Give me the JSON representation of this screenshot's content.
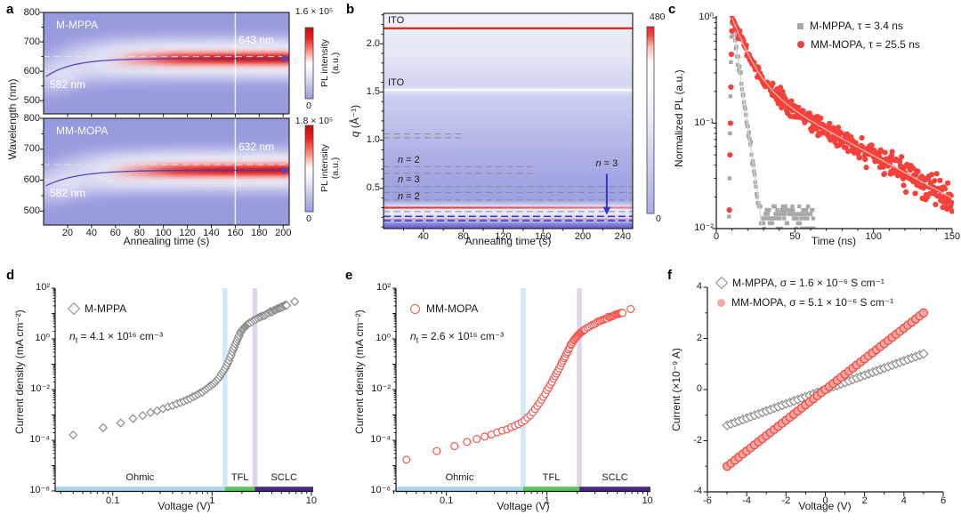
{
  "panel_letters": {
    "a": "a",
    "b": "b",
    "c": "c",
    "d": "d",
    "e": "e",
    "f": "f"
  },
  "chart_data": [
    {
      "id": "a",
      "type": "heatmap",
      "xlabel": "Annealing time (s)",
      "ylabel": "Wavelength (nm)",
      "x_range": [
        0,
        205
      ],
      "x_ticks": [
        20,
        40,
        60,
        80,
        100,
        120,
        140,
        160,
        180,
        200
      ],
      "y_range": [
        455,
        800
      ],
      "y_ticks": [
        800,
        700,
        600,
        500
      ],
      "guide_lines_nm": [
        650,
        600
      ],
      "time_marker_s": 160,
      "palette": {
        "bg": "#989ade",
        "hot": "#e8231e"
      },
      "colorbar": {
        "label_line1": "PL intensity",
        "label_line2": "(a.u.)",
        "min": "0"
      },
      "subpanels": [
        {
          "name": "M-MPPA",
          "start_label": "582 nm",
          "final_label": "643 nm",
          "start_nm": 582,
          "final_nm": 643,
          "rise_tau_s": 22,
          "colorbar_max": "1.6 × 10⁵"
        },
        {
          "name": "MM-MOPA",
          "start_label": "582 nm",
          "final_label": "632 nm",
          "start_nm": 582,
          "final_nm": 632,
          "rise_tau_s": 26,
          "colorbar_max": "1.8 × 10⁵"
        }
      ]
    },
    {
      "id": "b",
      "type": "heatmap",
      "xlabel": "Annealing time (s)",
      "ylabel_sym": "q",
      "ylabel_rest": " (Å⁻¹)",
      "x_range": [
        0,
        250
      ],
      "x_ticks": [
        40,
        80,
        120,
        160,
        200,
        240
      ],
      "x_minor": 20,
      "y_range": [
        0.083,
        2.315
      ],
      "y_ticks": [
        "2.0",
        "1.5",
        "1.0",
        "0.5"
      ],
      "y_tick_vals": [
        2.0,
        1.5,
        1.0,
        0.5
      ],
      "y_minor": 0.1,
      "palette": {
        "bg_top": "#f0f1fb",
        "bg_bottom": "#9a9de0",
        "dark_band": "#6165c9",
        "hot": "#e8231e",
        "blue_line": "#3232d4"
      },
      "colorbar": {
        "max": "480",
        "min": "0"
      },
      "ito_lines": [
        {
          "label": "ITO",
          "q": 2.16,
          "style": "red"
        },
        {
          "label": "ITO",
          "q": 1.52,
          "style": "white"
        }
      ],
      "red_lines": [
        0.3,
        0.18
      ],
      "gray_dashed": [
        {
          "qs": [
            1.065,
            1.025
          ],
          "t_end": 80
        },
        {
          "qs": [
            0.725,
            0.657
          ],
          "t_end": 150
        },
        {
          "qs": [
            0.519,
            0.457
          ],
          "t_end": 250
        },
        {
          "qs": [
            0.38
          ],
          "t_end": 250
        },
        {
          "qs": [
            0.26
          ],
          "t_end": 250
        }
      ],
      "blue_dashed": [
        0.21,
        0.165
      ],
      "peak_labels": [
        {
          "sym": "n",
          "rest": " = 2",
          "q": 0.79
        },
        {
          "sym": "n",
          "rest": " = 3",
          "q": 0.585
        },
        {
          "sym": "n",
          "rest": " = 2",
          "q": 0.415
        }
      ],
      "arrow_label": {
        "sym": "n",
        "rest": " = 3",
        "t": 224,
        "q_from": 0.65,
        "q_to": 0.225
      }
    },
    {
      "id": "c",
      "type": "scatter",
      "xlabel": "Time (ns)",
      "ylabel": "Normalized PL (a.u.)",
      "x_range": [
        0,
        150
      ],
      "x_ticks": [
        0,
        50,
        100,
        150
      ],
      "x_minor": 10,
      "y_ticks": [
        "10⁰",
        "10⁻¹",
        "10⁻²"
      ],
      "y_exps": [
        0,
        -1,
        -2
      ],
      "series": [
        {
          "name": "M-MPPA, τ = 3.4 ns",
          "marker": "square",
          "color": "#a8a8a8",
          "fit_color": "#d4d4d4",
          "t0": 10,
          "t_end": 62,
          "dt": 0.4,
          "components": [
            [
              1.0,
              4.2
            ]
          ],
          "floor": 0.0125,
          "quantize": 0.00125,
          "sigma": 0.07,
          "sigma_grow": 0,
          "rise": [
            [
              8.1,
              0.013
            ],
            [
              8.4,
              0.03
            ],
            [
              8.7,
              0.08
            ],
            [
              9.0,
              0.18
            ],
            [
              9.3,
              0.38
            ],
            [
              9.6,
              0.66
            ],
            [
              9.85,
              0.9
            ]
          ]
        },
        {
          "name": "MM-MOPA, τ = 25.5 ns",
          "marker": "circle",
          "color": "#f5413b",
          "fit_color": "#ffb3aa",
          "t0": 10,
          "t_end": 150,
          "dt": 0.35,
          "components": [
            [
              0.74,
              9
            ],
            [
              0.26,
              54
            ]
          ],
          "floor": 0.012,
          "quantize": 0,
          "sigma": 0.06,
          "sigma_grow": 0.14,
          "rise": [
            [
              8.3,
              0.015
            ],
            [
              8.7,
              0.05
            ],
            [
              9.0,
              0.1
            ],
            [
              9.3,
              0.22
            ],
            [
              9.6,
              0.45
            ],
            [
              9.85,
              0.75
            ]
          ]
        }
      ]
    },
    {
      "id": "d",
      "type": "loglog_iv",
      "xlabel": "Voltage (V)",
      "ylabel": "Current density (mA cm⁻²)",
      "series_name": "M-MPPA",
      "marker": "diamond",
      "color": "#8c8c8c",
      "trap_density": {
        "prefix": "n",
        "sub": "t",
        "rest": " = 4.1 × 10¹⁶ cm⁻³"
      },
      "x_ticks": [
        "0.1",
        "1",
        "10"
      ],
      "x_tick_vals": [
        0.1,
        1,
        10
      ],
      "y_ticks": [
        "10²",
        "10⁰",
        "10⁻²",
        "10⁻⁴",
        "10⁻⁶"
      ],
      "y_exps": [
        2,
        0,
        -2,
        -4,
        -6
      ],
      "regions": [
        {
          "label": "Ohmic",
          "from": 0.026,
          "to": 1.35,
          "color": "#a9d4e9"
        },
        {
          "label": "TFL",
          "from": 1.35,
          "to": 2.7,
          "color": "#5cc45c"
        },
        {
          "label": "SCLC",
          "from": 2.7,
          "to": 11.4,
          "color": "#47297e"
        }
      ],
      "band_colors": [
        "rgba(173,214,240,0.55)",
        "rgba(207,184,224,0.6)"
      ],
      "anchors": [
        [
          0.04,
          0.00016
        ],
        [
          0.08,
          0.00032
        ],
        [
          0.13,
          0.00055
        ],
        [
          0.19,
          0.0009
        ],
        [
          0.27,
          0.0014
        ],
        [
          0.38,
          0.0022
        ],
        [
          0.55,
          0.0038
        ],
        [
          0.75,
          0.007
        ],
        [
          0.95,
          0.013
        ],
        [
          1.1,
          0.022
        ],
        [
          1.25,
          0.04
        ],
        [
          1.4,
          0.085
        ],
        [
          1.55,
          0.22
        ],
        [
          1.7,
          0.55
        ],
        [
          1.85,
          1.2
        ],
        [
          2.0,
          2.2
        ],
        [
          2.2,
          3.4
        ],
        [
          2.6,
          5.2
        ],
        [
          3.2,
          8
        ],
        [
          4.0,
          12
        ],
        [
          5.0,
          18
        ],
        [
          5.6,
          22
        ],
        [
          6.8,
          30
        ]
      ],
      "sampling": {
        "lin": [
          0.04,
          0.04,
          2.4
        ],
        "lin2": [
          2.52,
          0.12,
          5.64
        ],
        "extra": [
          6.8
        ]
      }
    },
    {
      "id": "e",
      "type": "loglog_iv",
      "xlabel": "Voltage (V)",
      "ylabel": "Current density (mA cm⁻²)",
      "series_name": "MM-MOPA",
      "marker": "circle",
      "color": "#f5564e",
      "trap_density": {
        "prefix": "n",
        "sub": "t",
        "rest": " = 2.6 × 10¹⁶ cm⁻³"
      },
      "x_ticks": [
        "0.1",
        "1",
        "10"
      ],
      "x_tick_vals": [
        0.1,
        1,
        10
      ],
      "y_ticks": [
        "10²",
        "10⁰",
        "10⁻²",
        "10⁻⁴",
        "10⁻⁶"
      ],
      "y_exps": [
        2,
        0,
        -2,
        -4,
        -6
      ],
      "regions": [
        {
          "label": "Ohmic",
          "from": 0.026,
          "to": 0.58,
          "color": "#a9d4e9"
        },
        {
          "label": "TFL",
          "from": 0.58,
          "to": 2.1,
          "color": "#5cc45c"
        },
        {
          "label": "SCLC",
          "from": 2.1,
          "to": 10.7,
          "color": "#47297e"
        }
      ],
      "band_colors": [
        "rgba(173,214,240,0.55)",
        "rgba(207,184,224,0.6)"
      ],
      "anchors": [
        [
          0.04,
          1.7e-05
        ],
        [
          0.08,
          3.8e-05
        ],
        [
          0.13,
          6.5e-05
        ],
        [
          0.19,
          0.000105
        ],
        [
          0.27,
          0.00016
        ],
        [
          0.38,
          0.00026
        ],
        [
          0.5,
          0.0004
        ],
        [
          0.6,
          0.0006
        ],
        [
          0.7,
          0.0011
        ],
        [
          0.8,
          0.0022
        ],
        [
          0.9,
          0.0045
        ],
        [
          1.0,
          0.009
        ],
        [
          1.1,
          0.018
        ],
        [
          1.25,
          0.045
        ],
        [
          1.4,
          0.11
        ],
        [
          1.6,
          0.32
        ],
        [
          1.8,
          0.75
        ],
        [
          2.0,
          1.3
        ],
        [
          2.2,
          1.9
        ],
        [
          2.6,
          3.0
        ],
        [
          3.2,
          4.6
        ],
        [
          4.0,
          6.8
        ],
        [
          5.0,
          9.5
        ],
        [
          5.6,
          11
        ],
        [
          6.8,
          15
        ]
      ],
      "sampling": {
        "lin": [
          0.04,
          0.04,
          2.4
        ],
        "lin2": [
          2.52,
          0.12,
          5.64
        ],
        "extra": [
          6.8
        ]
      }
    },
    {
      "id": "f",
      "type": "linear_iv",
      "xlabel": "Voltage (V)",
      "ylabel": "Current (×10⁻⁹ A)",
      "x_range": [
        -6,
        6
      ],
      "y_range": [
        -4,
        4
      ],
      "x_ticks": [
        -6,
        -4,
        -2,
        0,
        2,
        4,
        6
      ],
      "y_ticks": [
        4,
        2,
        0,
        -2,
        -4
      ],
      "series": [
        {
          "name": "M-MPPA, σ = 1.6 × 10⁻⁶ S cm⁻¹",
          "marker": "diamond",
          "color": "#8c8c8c",
          "fill": "#ffffff",
          "slope": 0.28,
          "v_min": -5,
          "v_max": 5,
          "v_step": 0.2
        },
        {
          "name": "MM-MOPA, σ = 5.1 × 10⁻⁶ S cm⁻¹",
          "marker": "circle",
          "color": "#e8473f",
          "fill": "#f9a6a0",
          "slope": 0.6,
          "v_min": -5,
          "v_max": 5,
          "v_step": 0.2
        }
      ]
    }
  ]
}
